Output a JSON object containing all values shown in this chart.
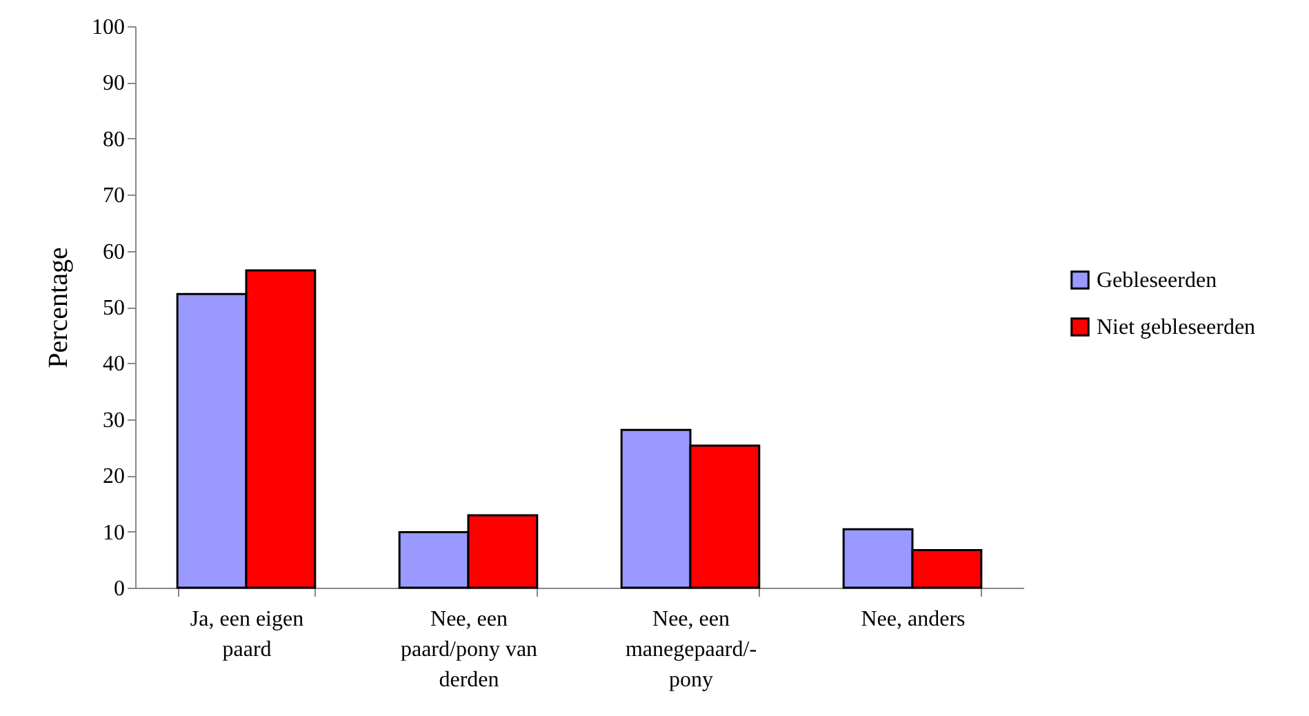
{
  "chart_data": {
    "type": "bar",
    "ylabel": "Percentage",
    "categories": [
      "Ja, een eigen paard",
      "Nee, een paard/pony van derden",
      "Nee, een manegepaard/-pony",
      "Nee, anders"
    ],
    "series": [
      {
        "name": "Gebleseerden",
        "color": "#9999ff",
        "values": [
          52.3,
          9.9,
          28.1,
          10.4
        ]
      },
      {
        "name": "Niet gebleseerden",
        "color": "#ff0000",
        "values": [
          56.5,
          12.9,
          25.3,
          6.7
        ]
      }
    ],
    "ylim": [
      0,
      100
    ],
    "yticks": [
      0,
      10,
      20,
      30,
      40,
      50,
      60,
      70,
      80,
      90,
      100
    ],
    "grid": false,
    "legend": "right"
  }
}
